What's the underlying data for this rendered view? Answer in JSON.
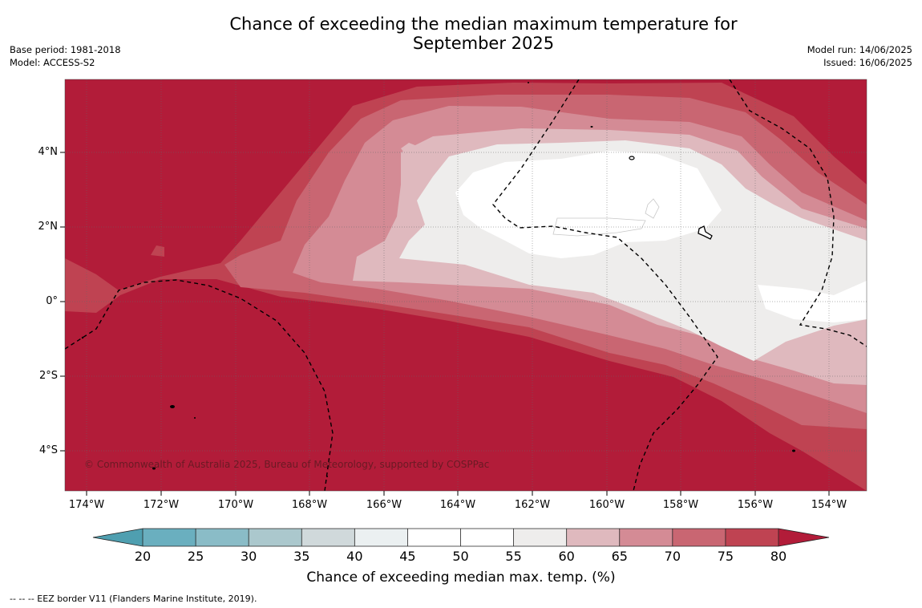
{
  "title_line1": "Chance of exceeding the median maximum temperature for",
  "title_line2": "September 2025",
  "meta_left": {
    "base_period": "Base period: 1981-2018",
    "model": "Model: ACCESS-S2"
  },
  "meta_right": {
    "model_run": "Model run: 14/06/2025",
    "issued": "Issued: 16/06/2025"
  },
  "map": {
    "lat_labels": [
      "4°N",
      "2°N",
      "0°",
      "2°S",
      "4°S"
    ],
    "lon_labels": [
      "174°W",
      "172°W",
      "170°W",
      "168°W",
      "166°W",
      "164°W",
      "162°W",
      "160°W",
      "158°W",
      "156°W",
      "154°W"
    ],
    "copyright": "© Commonwealth of Australia 2025, Bureau of Meteorology, supported by COSPPac"
  },
  "colorbar": {
    "title": "Chance of exceeding median max. temp. (%)",
    "ticks": [
      "20",
      "25",
      "30",
      "35",
      "40",
      "45",
      "50",
      "55",
      "60",
      "65",
      "70",
      "75",
      "80"
    ],
    "colors": [
      "#4f9fb0",
      "#6aafbf",
      "#8abcc7",
      "#abc8cd",
      "#d0d9db",
      "#ebf0f1",
      "#ffffff",
      "#ffffff",
      "#eeedec",
      "#dfb9be",
      "#d48b95",
      "#c96672",
      "#bf4352",
      "#b21c39"
    ]
  },
  "footer": "-- -- -- EEZ border V11 (Flanders Marine Institute, 2019)."
}
